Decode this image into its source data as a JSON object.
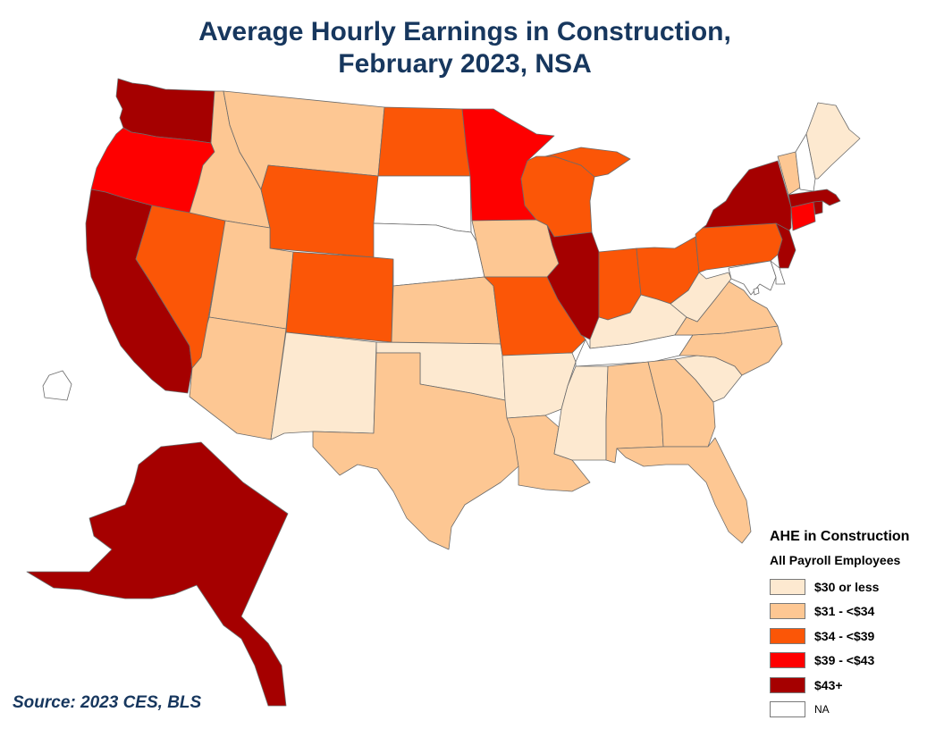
{
  "title": {
    "line1": "Average Hourly Earnings in Construction,",
    "line2": "February 2023, NSA"
  },
  "legend": {
    "title": "AHE in Construction",
    "subtitle": "All Payroll Employees",
    "classes": [
      {
        "id": "c1",
        "label": "$30 or less",
        "color": "#fde9d0"
      },
      {
        "id": "c2",
        "label": "$31 - <$34",
        "color": "#fdc793"
      },
      {
        "id": "c3",
        "label": "$34 - <$39",
        "color": "#fb5607"
      },
      {
        "id": "c4",
        "label": "$39 - <$43",
        "color": "#fe0000"
      },
      {
        "id": "c5",
        "label": "$43+",
        "color": "#a50000"
      },
      {
        "id": "na",
        "label": "NA",
        "color": "#ffffff"
      }
    ]
  },
  "source": "Source: 2023 CES, BLS",
  "states": {
    "WA": "c5",
    "OR": "c4",
    "CA": "c5",
    "NV": "c3",
    "ID": "c2",
    "MT": "c2",
    "WY": "c3",
    "UT": "c2",
    "AZ": "c2",
    "CO": "c3",
    "NM": "c1",
    "ND": "c3",
    "SD": "na",
    "NE": "na",
    "KS": "c2",
    "OK": "c1",
    "TX": "c2",
    "MN": "c4",
    "IA": "c2",
    "MO": "c3",
    "AR": "c1",
    "LA": "c2",
    "WI": "c3",
    "IL": "c5",
    "MI": "c3",
    "IN": "c3",
    "OH": "c3",
    "KY": "c1",
    "TN": "na",
    "MS": "c1",
    "AL": "c2",
    "GA": "c2",
    "FL": "c2",
    "SC": "c1",
    "NC": "c2",
    "VA": "c2",
    "WV": "c1",
    "PA": "c3",
    "NY": "c5",
    "NJ": "c5",
    "DE": "na",
    "MD": "na",
    "DC": "na",
    "CT": "c4",
    "RI": "c5",
    "MA": "c5",
    "VT": "c2",
    "NH": "na",
    "ME": "c1",
    "AK": "c5",
    "HI": "na"
  }
}
